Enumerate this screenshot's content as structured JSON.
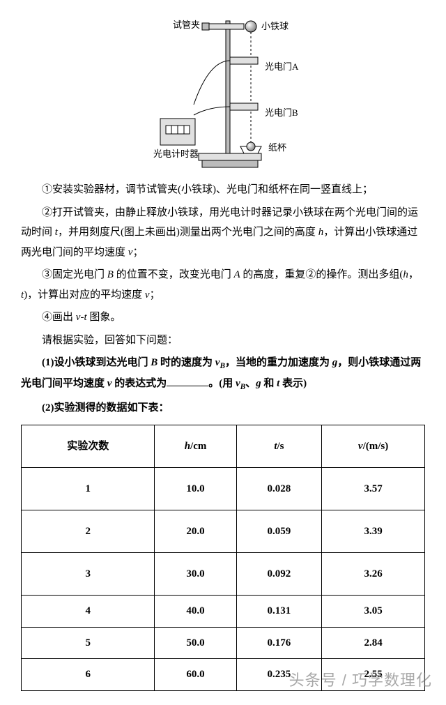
{
  "diagram": {
    "labels": {
      "clamp": "试管夹",
      "ball": "小铁球",
      "gateA": "光电门A",
      "gateB": "光电门B",
      "cup": "纸杯",
      "timer": "光电计时器"
    },
    "colors": {
      "stroke": "#000000",
      "fill_light": "#e0e0e0",
      "fill_mid": "#bcbcbc",
      "fill_dark": "#808080"
    }
  },
  "steps": {
    "s1": "①安装实验器材，调节试管夹(小铁球)、光电门和纸杯在同一竖直线上；",
    "s2a": "②打开试管夹，由静止释放小铁球，用光电计时器记录小铁球在两个光电门间的运动时间 ",
    "s2b": "，并用刻度尺(图上未画出)测量出两个光电门之间的高度 ",
    "s2c": "，计算出小铁球通过两光电门间的平均速度 ",
    "s2d": "；",
    "s3a": "③固定光电门 ",
    "s3b": " 的位置不变，改变光电门 ",
    "s3c": " 的高度，重复②的操作。测出多组(",
    "s3d": ")，计算出对应的平均速度 ",
    "s3e": "；",
    "s4a": "④画出 ",
    "s4b": " 图象。",
    "prompt": "请根据实验，回答如下问题："
  },
  "questions": {
    "q1a": "(1)设小铁球到达光电门 ",
    "q1b": " 时的速度为 ",
    "q1c": "，当地的重力加速度为 ",
    "q1d": "，则小铁球通过两光电门间平均速度 ",
    "q1e": " 的表达式为",
    "q1f": "。(用 ",
    "q1g": " 和 ",
    "q1h": " 表示)",
    "q2": "(2)实验测得的数据如下表："
  },
  "table": {
    "headers": [
      "实验次数",
      "h/cm",
      "t/s",
      "v/(m/s)"
    ],
    "rows": [
      {
        "n": "1",
        "h": "10.0",
        "t": "0.028",
        "v": "3.57",
        "cls": "tall"
      },
      {
        "n": "2",
        "h": "20.0",
        "t": "0.059",
        "v": "3.39",
        "cls": "tall"
      },
      {
        "n": "3",
        "h": "30.0",
        "t": "0.092",
        "v": "3.26",
        "cls": "tall"
      },
      {
        "n": "4",
        "h": "40.0",
        "t": "0.131",
        "v": "3.05",
        "cls": "short"
      },
      {
        "n": "5",
        "h": "50.0",
        "t": "0.176",
        "v": "2.84",
        "cls": "short"
      },
      {
        "n": "6",
        "h": "60.0",
        "t": "0.235",
        "v": "2.55",
        "cls": "short"
      }
    ]
  },
  "watermark": "头条号 / 巧学数理化"
}
